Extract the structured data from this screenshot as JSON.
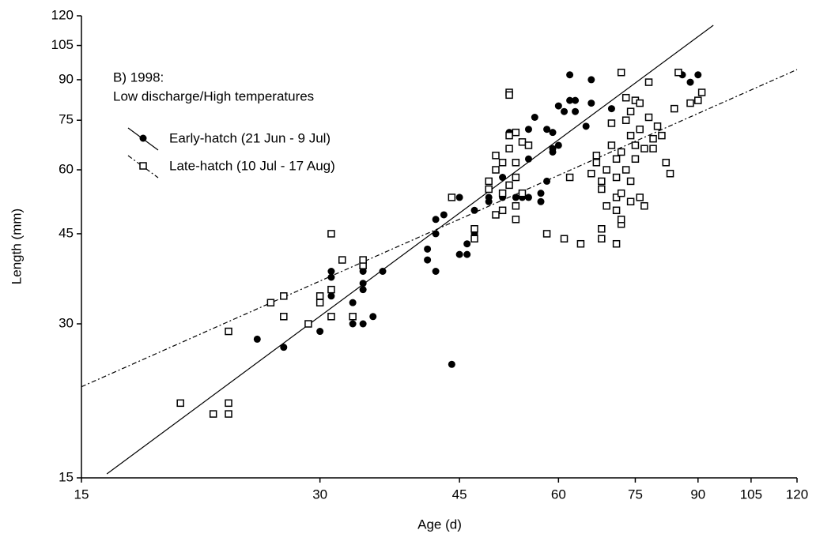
{
  "chart_data": {
    "type": "scatter",
    "x_label": "Age (d)",
    "y_label": "Length (mm)",
    "annotations": [
      "B) 1998:",
      "Low discharge/High temperatures"
    ],
    "log_x": true,
    "log_y": true,
    "xlim": [
      15,
      120
    ],
    "ylim": [
      15,
      120
    ],
    "xticks": [
      15,
      30,
      45,
      60,
      75,
      90,
      105,
      120
    ],
    "yticks": [
      15,
      30,
      45,
      60,
      75,
      90,
      105,
      120
    ],
    "series": [
      {
        "name": "Early-hatch (21 Jun - 9 Jul)",
        "color": "#000000",
        "marker": "filled-circle",
        "line_style": "solid",
        "x": [
          25,
          27,
          30,
          31,
          31,
          31,
          33,
          33,
          34,
          34,
          34,
          34,
          35,
          36,
          41,
          41,
          42,
          42,
          42,
          43,
          44,
          44,
          45,
          45,
          46,
          46,
          47,
          47,
          49,
          49,
          49,
          51,
          51,
          52,
          53,
          54,
          55,
          55,
          55,
          56,
          57,
          57,
          58,
          58,
          59,
          59,
          59,
          60,
          60,
          61,
          62,
          62,
          63,
          63,
          65,
          66,
          66,
          70,
          86,
          88,
          90
        ],
        "y": [
          28,
          27,
          29,
          34,
          37,
          38,
          33,
          30,
          30,
          38,
          36,
          35,
          31,
          38,
          40,
          42,
          38,
          48,
          45,
          49,
          25,
          53,
          41,
          53,
          41,
          43,
          45,
          50,
          52,
          53,
          55,
          53,
          58,
          71,
          53,
          53,
          53,
          72,
          63,
          76,
          54,
          52,
          57,
          72,
          65,
          71,
          66,
          67,
          80,
          78,
          82,
          92,
          82,
          78,
          73,
          81,
          90,
          79,
          92,
          89,
          92
        ],
        "fit": {
          "x": [
            16.15,
            94.1
          ],
          "y": [
            15.27,
            115
          ]
        }
      },
      {
        "name": "Late-hatch (10 Jul - 17 Aug)",
        "color": "#000000",
        "marker": "open-square",
        "line_style": "dashdot",
        "x": [
          20,
          22,
          23,
          23,
          23,
          26,
          27,
          27,
          29,
          30,
          30,
          31,
          31,
          31,
          32,
          33,
          34,
          34,
          44,
          47,
          47,
          49,
          49,
          50,
          50,
          50,
          51,
          51,
          51,
          52,
          52,
          52,
          52,
          52,
          53,
          53,
          53,
          53,
          53,
          54,
          54,
          55,
          58,
          61,
          62,
          64,
          66,
          67,
          67,
          68,
          68,
          68,
          68,
          69,
          69,
          70,
          70,
          71,
          71,
          71,
          71,
          71,
          72,
          72,
          72,
          72,
          73,
          73,
          73,
          74,
          74,
          74,
          74,
          75,
          75,
          75,
          76,
          76,
          76,
          77,
          77,
          78,
          78,
          79,
          79,
          80,
          81,
          82,
          83,
          84,
          85,
          88,
          90,
          91,
          72
        ],
        "y": [
          21,
          20,
          20,
          21,
          29,
          33,
          31,
          34,
          30,
          33,
          34,
          31,
          35,
          45,
          40,
          31,
          39,
          40,
          53,
          46,
          44,
          55,
          57,
          49,
          60,
          64,
          50,
          54,
          62,
          56,
          66,
          70,
          85,
          84,
          48,
          51,
          58,
          62,
          71,
          54,
          68,
          67,
          45,
          44,
          58,
          43,
          59,
          62,
          64,
          44,
          46,
          55,
          57,
          51,
          60,
          74,
          67,
          43,
          50,
          53,
          58,
          63,
          47,
          48,
          54,
          65,
          75,
          83,
          60,
          52,
          57,
          70,
          78,
          67,
          82,
          63,
          53,
          72,
          81,
          51,
          66,
          76,
          89,
          69,
          66,
          73,
          70,
          62,
          59,
          79,
          93,
          81,
          82,
          85,
          93
        ],
        "fit": {
          "x": [
            15,
            120
          ],
          "y": [
            22.6,
            94.2
          ]
        }
      }
    ]
  }
}
